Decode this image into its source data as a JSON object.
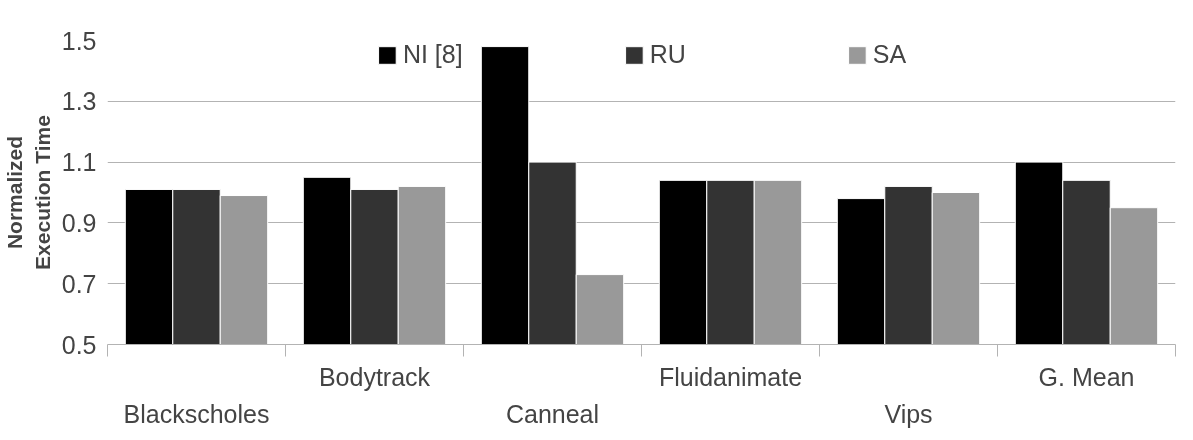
{
  "chart_data": {
    "type": "bar",
    "ylabel": "Normalized Execution Time",
    "categories": [
      "Blackscholes",
      "Bodytrack",
      "Canneal",
      "Fluidanimate",
      "Vips",
      "G. Mean"
    ],
    "series": [
      {
        "name": "NI [8]",
        "color": "#000000",
        "values": [
          1.01,
          1.05,
          1.48,
          1.04,
          0.98,
          1.1
        ]
      },
      {
        "name": "RU",
        "color": "#333333",
        "values": [
          1.01,
          1.01,
          1.1,
          1.04,
          1.02,
          1.04
        ]
      },
      {
        "name": "SA",
        "color": "#999999",
        "values": [
          0.99,
          1.02,
          0.73,
          1.04,
          1.0,
          0.95
        ]
      }
    ],
    "ylim": [
      0.5,
      1.5
    ],
    "yticks": [
      0.5,
      0.7,
      0.9,
      1.1,
      1.3,
      1.5
    ],
    "grid": "y",
    "legend": "top"
  }
}
